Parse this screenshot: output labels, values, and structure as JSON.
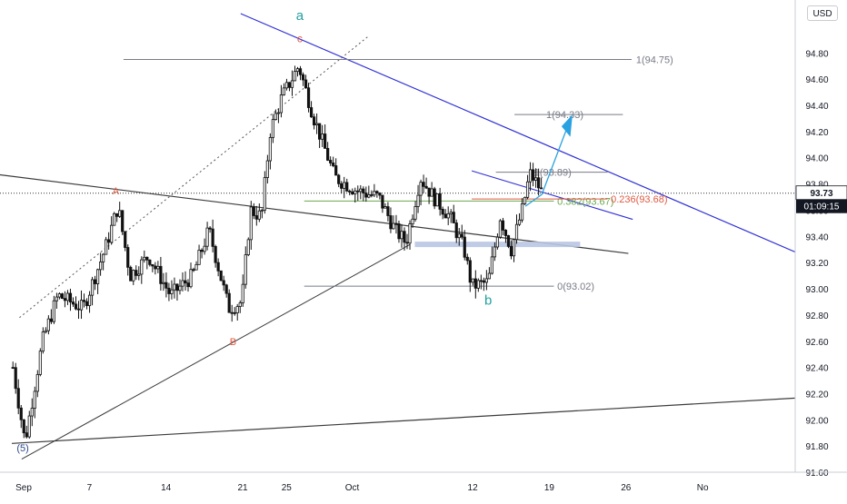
{
  "currency_button": "USD",
  "last_price": {
    "value": "93.73",
    "countdown": "01:09:15",
    "price": 93.73
  },
  "chart_data": {
    "type": "candlestick",
    "title": "",
    "xlabel": "",
    "ylabel": "",
    "grid": false,
    "ylim": [
      91.55,
      95.1
    ],
    "x_ticks": [
      {
        "label": "Sep",
        "day": 1
      },
      {
        "label": "7",
        "day": 7
      },
      {
        "label": "14",
        "day": 14
      },
      {
        "label": "21",
        "day": 21
      },
      {
        "label": "25",
        "day": 25
      },
      {
        "label": "Oct",
        "day": 31
      },
      {
        "label": "12",
        "day": 42
      },
      {
        "label": "19",
        "day": 49
      },
      {
        "label": "26",
        "day": 56
      },
      {
        "label": "No",
        "day": 63
      }
    ],
    "y_ticks": [
      "94.80",
      "94.60",
      "94.40",
      "94.20",
      "94.00",
      "93.80",
      "93.60",
      "93.40",
      "93.20",
      "93.00",
      "92.80",
      "92.60",
      "92.40",
      "92.20",
      "92.00",
      "91.80",
      "91.60"
    ],
    "price_path": [
      {
        "day": 0.1,
        "price": 92.4
      },
      {
        "day": 1.2,
        "price": 91.83
      },
      {
        "day": 2.8,
        "price": 92.6
      },
      {
        "day": 4.2,
        "price": 92.95
      },
      {
        "day": 6.5,
        "price": 92.85
      },
      {
        "day": 8.5,
        "price": 93.3
      },
      {
        "day": 9.7,
        "price": 93.63
      },
      {
        "day": 10.8,
        "price": 93.1
      },
      {
        "day": 12.5,
        "price": 93.25
      },
      {
        "day": 14.5,
        "price": 92.95
      },
      {
        "day": 16.5,
        "price": 93.1
      },
      {
        "day": 18.0,
        "price": 93.45
      },
      {
        "day": 19.8,
        "price": 92.85
      },
      {
        "day": 21.0,
        "price": 92.9
      },
      {
        "day": 21.8,
        "price": 93.6
      },
      {
        "day": 22.8,
        "price": 93.55
      },
      {
        "day": 23.6,
        "price": 94.2
      },
      {
        "day": 24.6,
        "price": 94.45
      },
      {
        "day": 26.2,
        "price": 94.7
      },
      {
        "day": 27.6,
        "price": 94.3
      },
      {
        "day": 29.5,
        "price": 93.85
      },
      {
        "day": 31.5,
        "price": 93.75
      },
      {
        "day": 33.5,
        "price": 93.7
      },
      {
        "day": 35.0,
        "price": 93.45
      },
      {
        "day": 36.0,
        "price": 93.35
      },
      {
        "day": 37.3,
        "price": 93.85
      },
      {
        "day": 38.5,
        "price": 93.7
      },
      {
        "day": 40.0,
        "price": 93.55
      },
      {
        "day": 41.3,
        "price": 93.3
      },
      {
        "day": 42.0,
        "price": 93.02
      },
      {
        "day": 43.5,
        "price": 93.05
      },
      {
        "day": 44.6,
        "price": 93.55
      },
      {
        "day": 45.6,
        "price": 93.3
      },
      {
        "day": 46.6,
        "price": 93.6
      },
      {
        "day": 47.3,
        "price": 93.88
      },
      {
        "day": 48.0,
        "price": 93.8
      },
      {
        "day": 48.4,
        "price": 93.73
      }
    ],
    "annotations": {
      "labels": [
        {
          "text": "a",
          "day": 26.3,
          "price": 95.05,
          "color": "#22a0a0",
          "size": 15
        },
        {
          "text": "c",
          "day": 26.3,
          "price": 94.88,
          "color": "#e05a42",
          "size": 12
        },
        {
          "text": "A",
          "day": 9.5,
          "price": 93.72,
          "color": "#e05a42",
          "size": 11
        },
        {
          "text": "B",
          "day": 20.2,
          "price": 92.57,
          "color": "#e05a42",
          "size": 11
        },
        {
          "text": "b",
          "day": 43.5,
          "price": 92.88,
          "color": "#22a0a0",
          "size": 15
        },
        {
          "text": "(5)",
          "day": 1.0,
          "price": 91.76,
          "color": "#2a4a8c",
          "size": 11
        }
      ],
      "fib_lines": [
        {
          "label": "1(94.75)",
          "price": 94.75,
          "from": 10.2,
          "to": 56.6,
          "color": "#787b86",
          "label_day": 57.0
        },
        {
          "label": "1(94.33)",
          "price": 94.33,
          "from": 45.9,
          "to": 55.8,
          "color": "#787b86",
          "label_day": 48.8
        },
        {
          "label": "1(93.89)",
          "price": 93.89,
          "from": 44.2,
          "to": 54.4,
          "color": "#787b86",
          "label_day": 47.7
        },
        {
          "label": "0(93.02)",
          "price": 93.02,
          "from": 26.7,
          "to": 49.5,
          "color": "#787b86",
          "label_day": 49.8
        },
        {
          "label": "0.382(93.67)",
          "price": 93.67,
          "from": 26.7,
          "to": 49.5,
          "color": "#6aa84f",
          "label_day": 49.8
        },
        {
          "label": "0.236(93.68)",
          "price": 93.685,
          "from": 42.0,
          "to": 54.4,
          "color": "#e05a42",
          "label_day": 54.7
        }
      ]
    }
  }
}
